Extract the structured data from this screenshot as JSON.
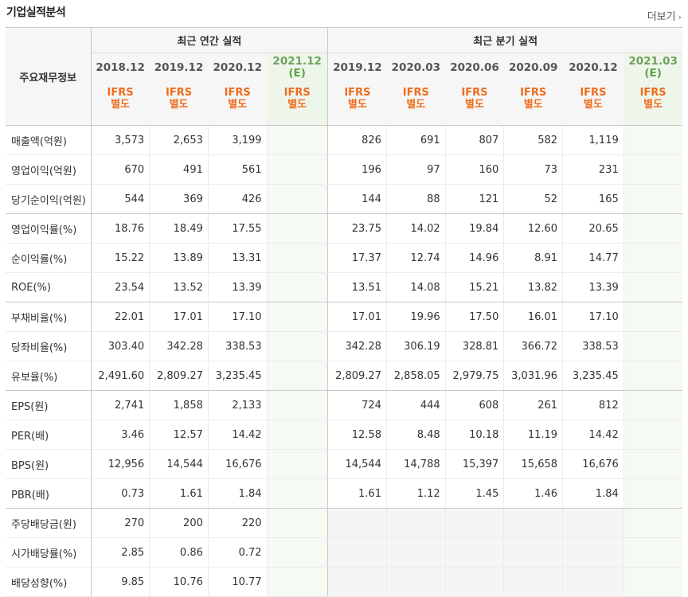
{
  "title": "기업실적분석",
  "more_label": "더보기",
  "header": {
    "row_label": "주요재무정보",
    "annual_label": "최근 연간 실적",
    "quarterly_label": "최근 분기 실적",
    "annual_periods": [
      {
        "date": "2018.12",
        "est": "",
        "std1": "IFRS",
        "std2": "별도"
      },
      {
        "date": "2019.12",
        "est": "",
        "std1": "IFRS",
        "std2": "별도"
      },
      {
        "date": "2020.12",
        "est": "",
        "std1": "IFRS",
        "std2": "별도"
      },
      {
        "date": "2021.12",
        "est": "(E)",
        "std1": "IFRS",
        "std2": "별도"
      }
    ],
    "quarterly_periods": [
      {
        "date": "2019.12",
        "est": "",
        "std1": "IFRS",
        "std2": "별도"
      },
      {
        "date": "2020.03",
        "est": "",
        "std1": "IFRS",
        "std2": "별도"
      },
      {
        "date": "2020.06",
        "est": "",
        "std1": "IFRS",
        "std2": "별도"
      },
      {
        "date": "2020.09",
        "est": "",
        "std1": "IFRS",
        "std2": "별도"
      },
      {
        "date": "2020.12",
        "est": "",
        "std1": "IFRS",
        "std2": "별도"
      },
      {
        "date": "2021.03",
        "est": "(E)",
        "std1": "IFRS",
        "std2": "별도"
      }
    ]
  },
  "rows": [
    {
      "label": "매출액(억원)",
      "annual": [
        "3,573",
        "2,653",
        "3,199",
        ""
      ],
      "quarterly": [
        "826",
        "691",
        "807",
        "582",
        "1,119",
        ""
      ]
    },
    {
      "label": "영업이익(억원)",
      "annual": [
        "670",
        "491",
        "561",
        ""
      ],
      "quarterly": [
        "196",
        "97",
        "160",
        "73",
        "231",
        ""
      ]
    },
    {
      "label": "당기순이익(억원)",
      "annual": [
        "544",
        "369",
        "426",
        ""
      ],
      "quarterly": [
        "144",
        "88",
        "121",
        "52",
        "165",
        ""
      ]
    },
    {
      "label": "영업이익률(%)",
      "annual": [
        "18.76",
        "18.49",
        "17.55",
        ""
      ],
      "quarterly": [
        "23.75",
        "14.02",
        "19.84",
        "12.60",
        "20.65",
        ""
      ]
    },
    {
      "label": "순이익률(%)",
      "annual": [
        "15.22",
        "13.89",
        "13.31",
        ""
      ],
      "quarterly": [
        "17.37",
        "12.74",
        "14.96",
        "8.91",
        "14.77",
        ""
      ]
    },
    {
      "label": "ROE(%)",
      "annual": [
        "23.54",
        "13.52",
        "13.39",
        ""
      ],
      "quarterly": [
        "13.51",
        "14.08",
        "15.21",
        "13.82",
        "13.39",
        ""
      ]
    },
    {
      "label": "부채비율(%)",
      "annual": [
        "22.01",
        "17.01",
        "17.10",
        ""
      ],
      "quarterly": [
        "17.01",
        "19.96",
        "17.50",
        "16.01",
        "17.10",
        ""
      ]
    },
    {
      "label": "당좌비율(%)",
      "annual": [
        "303.40",
        "342.28",
        "338.53",
        ""
      ],
      "quarterly": [
        "342.28",
        "306.19",
        "328.81",
        "366.72",
        "338.53",
        ""
      ]
    },
    {
      "label": "유보율(%)",
      "annual": [
        "2,491.60",
        "2,809.27",
        "3,235.45",
        ""
      ],
      "quarterly": [
        "2,809.27",
        "2,858.05",
        "2,979.75",
        "3,031.96",
        "3,235.45",
        ""
      ]
    },
    {
      "label": "EPS(원)",
      "annual": [
        "2,741",
        "1,858",
        "2,133",
        ""
      ],
      "quarterly": [
        "724",
        "444",
        "608",
        "261",
        "812",
        ""
      ]
    },
    {
      "label": "PER(배)",
      "annual": [
        "3.46",
        "12.57",
        "14.42",
        ""
      ],
      "quarterly": [
        "12.58",
        "8.48",
        "10.18",
        "11.19",
        "14.42",
        ""
      ]
    },
    {
      "label": "BPS(원)",
      "annual": [
        "12,956",
        "14,544",
        "16,676",
        ""
      ],
      "quarterly": [
        "14,544",
        "14,788",
        "15,397",
        "15,658",
        "16,676",
        ""
      ]
    },
    {
      "label": "PBR(배)",
      "annual": [
        "0.73",
        "1.61",
        "1.84",
        ""
      ],
      "quarterly": [
        "1.61",
        "1.12",
        "1.45",
        "1.46",
        "1.84",
        ""
      ]
    },
    {
      "label": "주당배당금(원)",
      "annual": [
        "270",
        "200",
        "220",
        ""
      ],
      "quarterly": [
        "",
        "",
        "",
        "",
        "",
        ""
      ],
      "blank_quarterly": true
    },
    {
      "label": "시가배당률(%)",
      "annual": [
        "2.85",
        "0.86",
        "0.72",
        ""
      ],
      "quarterly": [
        "",
        "",
        "",
        "",
        "",
        ""
      ],
      "blank_quarterly": true
    },
    {
      "label": "배당성향(%)",
      "annual": [
        "9.85",
        "10.76",
        "10.77",
        ""
      ],
      "quarterly": [
        "",
        "",
        "",
        "",
        "",
        ""
      ],
      "blank_quarterly": true
    }
  ],
  "group_ends": [
    2,
    5,
    8,
    12
  ]
}
